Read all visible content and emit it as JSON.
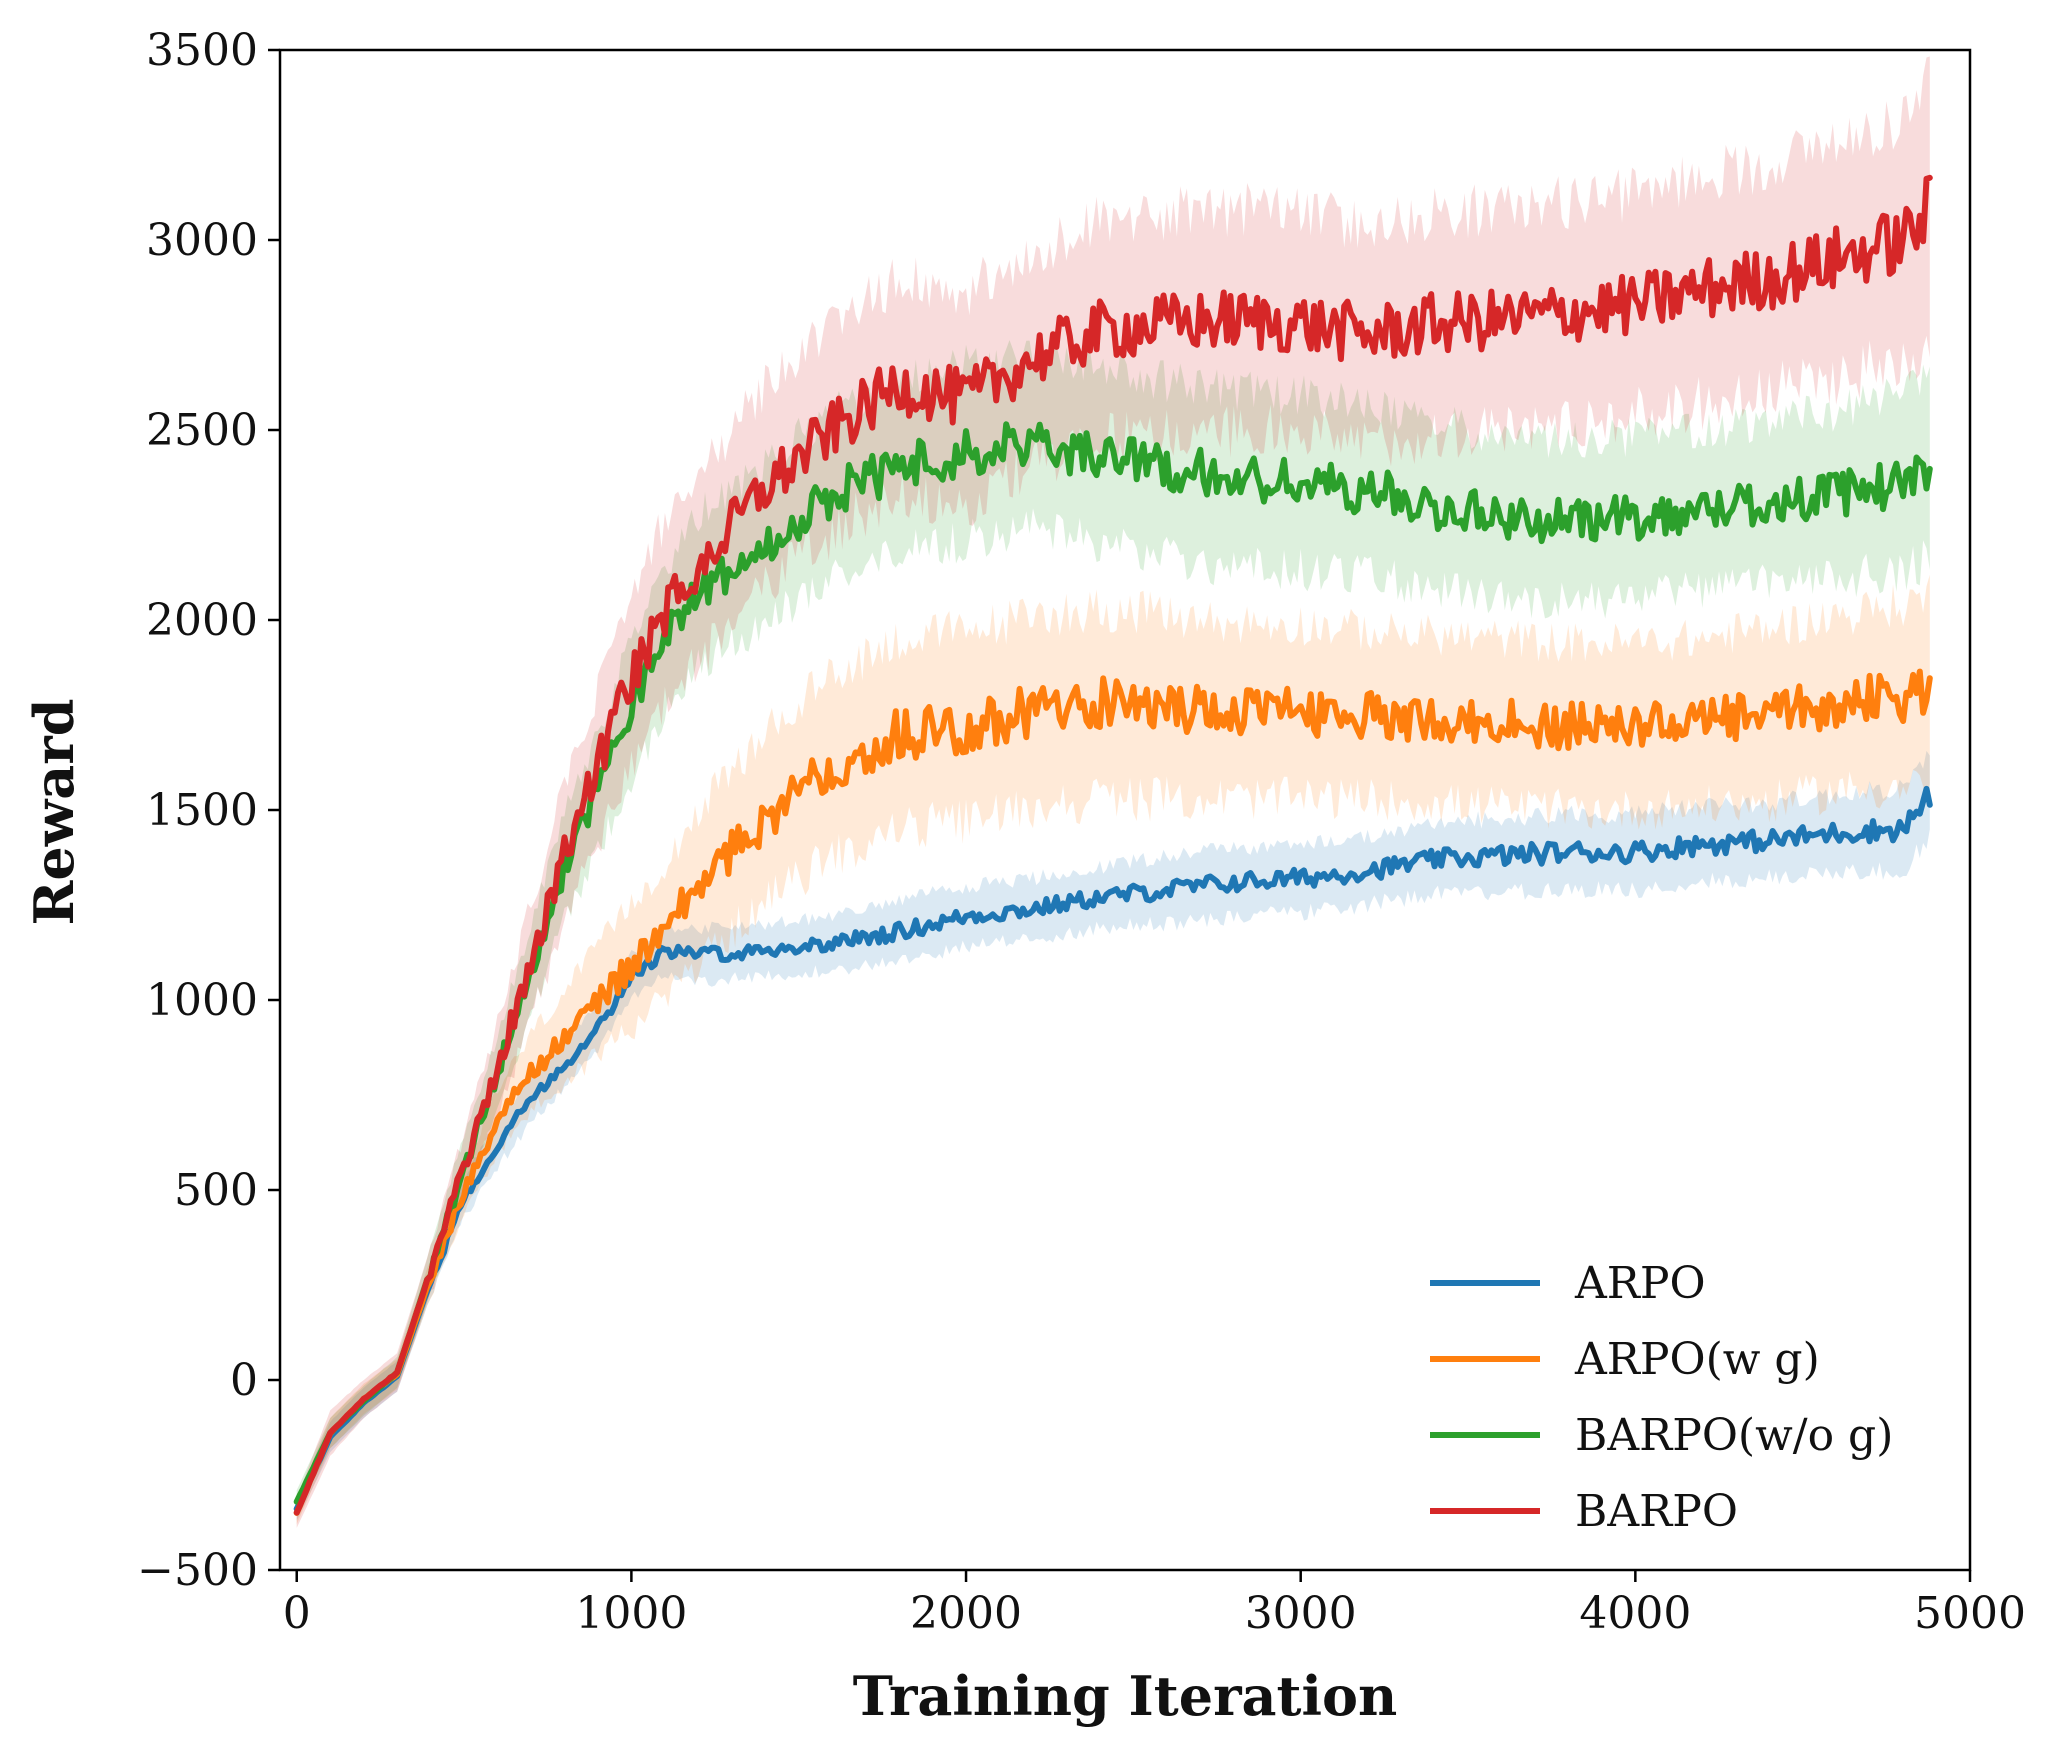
{
  "chart_data": {
    "type": "line",
    "title": "",
    "xlabel": "Training Iteration",
    "ylabel": "Reward",
    "xlim": [
      -50,
      5000
    ],
    "ylim": [
      -500,
      3500
    ],
    "xticks": [
      0,
      1000,
      2000,
      3000,
      4000,
      5000
    ],
    "yticks": [
      -500,
      0,
      500,
      1000,
      1500,
      2000,
      2500,
      3000,
      3500
    ],
    "xtick_labels": [
      "0",
      "1000",
      "2000",
      "3000",
      "4000",
      "5000"
    ],
    "ytick_labels": [
      "−500",
      "0",
      "500",
      "1000",
      "1500",
      "2000",
      "2500",
      "3000",
      "3500"
    ],
    "grid": false,
    "legend_position": "lower-right",
    "x": [
      0,
      100,
      200,
      300,
      400,
      500,
      600,
      700,
      800,
      900,
      1000,
      1100,
      1200,
      1400,
      1600,
      1800,
      2000,
      2200,
      2400,
      2600,
      2800,
      3000,
      3200,
      3400,
      3600,
      3800,
      4000,
      4200,
      4400,
      4600,
      4800,
      4880
    ],
    "series": [
      {
        "name": "ARPO",
        "color": "#1f77b4",
        "values": [
          -340,
          -150,
          -60,
          10,
          260,
          480,
          620,
          740,
          830,
          930,
          1060,
          1130,
          1120,
          1130,
          1150,
          1180,
          1220,
          1240,
          1270,
          1290,
          1310,
          1320,
          1340,
          1370,
          1380,
          1390,
          1390,
          1410,
          1420,
          1440,
          1450,
          1540
        ],
        "band": [
          30,
          40,
          40,
          40,
          40,
          50,
          60,
          60,
          60,
          60,
          60,
          60,
          70,
          70,
          70,
          80,
          80,
          80,
          80,
          90,
          90,
          90,
          90,
          90,
          100,
          100,
          100,
          100,
          100,
          100,
          110,
          110
        ]
      },
      {
        "name": "ARPO(w g)",
        "color": "#ff7f0e",
        "values": [
          -350,
          -140,
          -50,
          15,
          270,
          500,
          680,
          810,
          900,
          1000,
          1090,
          1180,
          1300,
          1480,
          1620,
          1700,
          1720,
          1760,
          1780,
          1770,
          1760,
          1760,
          1750,
          1740,
          1730,
          1720,
          1720,
          1730,
          1750,
          1780,
          1800,
          1820
        ],
        "band": [
          30,
          40,
          40,
          40,
          50,
          60,
          80,
          100,
          120,
          140,
          160,
          180,
          200,
          220,
          240,
          250,
          250,
          250,
          250,
          240,
          230,
          230,
          220,
          220,
          220,
          220,
          220,
          220,
          230,
          230,
          240,
          250
        ]
      },
      {
        "name": "BARPO(w/o g)",
        "color": "#2ca02c",
        "values": [
          -320,
          -140,
          -55,
          20,
          290,
          560,
          810,
          1080,
          1350,
          1550,
          1770,
          1950,
          2080,
          2200,
          2330,
          2400,
          2440,
          2470,
          2430,
          2400,
          2370,
          2360,
          2340,
          2300,
          2270,
          2260,
          2270,
          2290,
          2310,
          2330,
          2360,
          2400
        ],
        "band": [
          30,
          40,
          40,
          40,
          60,
          80,
          100,
          120,
          140,
          160,
          180,
          190,
          200,
          210,
          220,
          220,
          230,
          230,
          230,
          230,
          230,
          230,
          220,
          220,
          210,
          210,
          210,
          210,
          210,
          220,
          230,
          240
        ]
      },
      {
        "name": "BARPO",
        "color": "#d62728",
        "values": [
          -350,
          -140,
          -50,
          20,
          290,
          560,
          820,
          1100,
          1380,
          1620,
          1850,
          2020,
          2140,
          2350,
          2500,
          2620,
          2580,
          2690,
          2760,
          2780,
          2790,
          2780,
          2750,
          2780,
          2790,
          2810,
          2830,
          2870,
          2900,
          2950,
          3000,
          3080
        ],
        "band": [
          40,
          60,
          50,
          50,
          60,
          90,
          120,
          150,
          180,
          200,
          220,
          240,
          250,
          260,
          270,
          280,
          280,
          280,
          290,
          290,
          290,
          290,
          290,
          290,
          290,
          290,
          290,
          300,
          300,
          310,
          320,
          350
        ]
      }
    ]
  }
}
